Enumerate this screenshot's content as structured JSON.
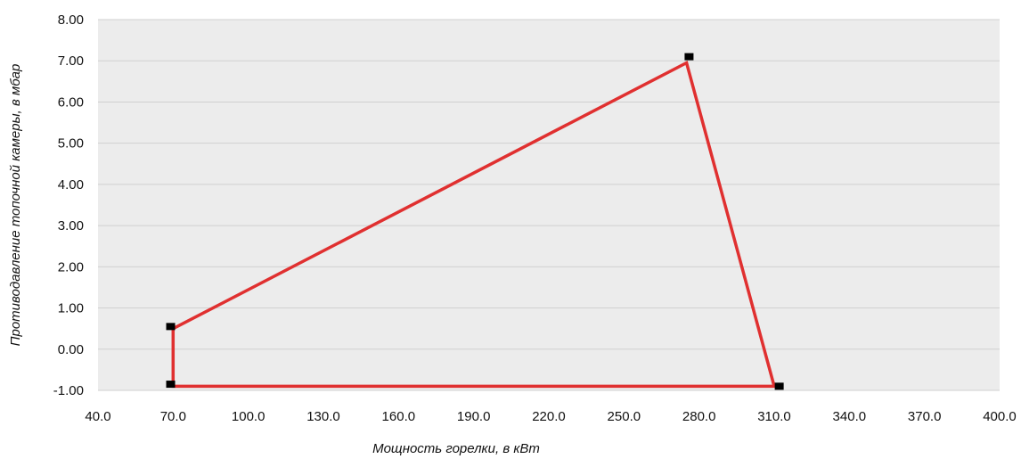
{
  "chart_data": {
    "type": "line",
    "title": "",
    "xlabel": "Мощность горелки, в кВт",
    "ylabel": "Противодавление топочной камеры, в мбар",
    "xlim": [
      40,
      400
    ],
    "ylim": [
      -1,
      8
    ],
    "x_ticks": [
      "40.0",
      "70.0",
      "100.0",
      "130.0",
      "160.0",
      "190.0",
      "220.0",
      "250.0",
      "280.0",
      "310.0",
      "340.0",
      "370.0",
      "400.0"
    ],
    "y_ticks": [
      "-1.00",
      "0.00",
      "1.00",
      "2.00",
      "3.00",
      "4.00",
      "5.00",
      "6.00",
      "7.00",
      "8.00"
    ],
    "grid": true,
    "series": [
      {
        "color": "#e03030",
        "points": [
          {
            "x": 70,
            "y": -0.9
          },
          {
            "x": 70,
            "y": 0.5
          },
          {
            "x": 275,
            "y": 6.95
          },
          {
            "x": 310,
            "y": -0.9
          },
          {
            "x": 70,
            "y": -0.9
          }
        ]
      }
    ],
    "markers": [
      {
        "x": 69,
        "y": 0.55
      },
      {
        "x": 69,
        "y": -0.85
      },
      {
        "x": 276,
        "y": 7.1
      },
      {
        "x": 312,
        "y": -0.9
      }
    ],
    "colors": {
      "plot_bg": "#ececec",
      "grid": "#d0d0d0",
      "line": "#e03030",
      "marker": "#000000"
    }
  }
}
